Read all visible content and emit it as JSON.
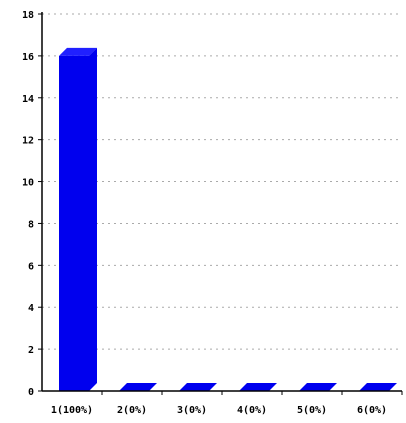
{
  "chart_data": {
    "type": "bar",
    "title": "",
    "xlabel": "",
    "ylabel": "",
    "categories": [
      "1(100%)",
      "2(0%)",
      "3(0%)",
      "4(0%)",
      "5(0%)",
      "6(0%)"
    ],
    "values": [
      16,
      0,
      0,
      0,
      0,
      0
    ],
    "ylim": [
      0,
      18
    ],
    "yticks": [
      0,
      2,
      4,
      6,
      8,
      10,
      12,
      14,
      16,
      18
    ],
    "grid": true,
    "bar_style": "3d",
    "colors": {
      "bar": "#0000ee",
      "bar_top": "#2020ff",
      "axis": "#000000",
      "grid": "#aaaaaa"
    }
  }
}
